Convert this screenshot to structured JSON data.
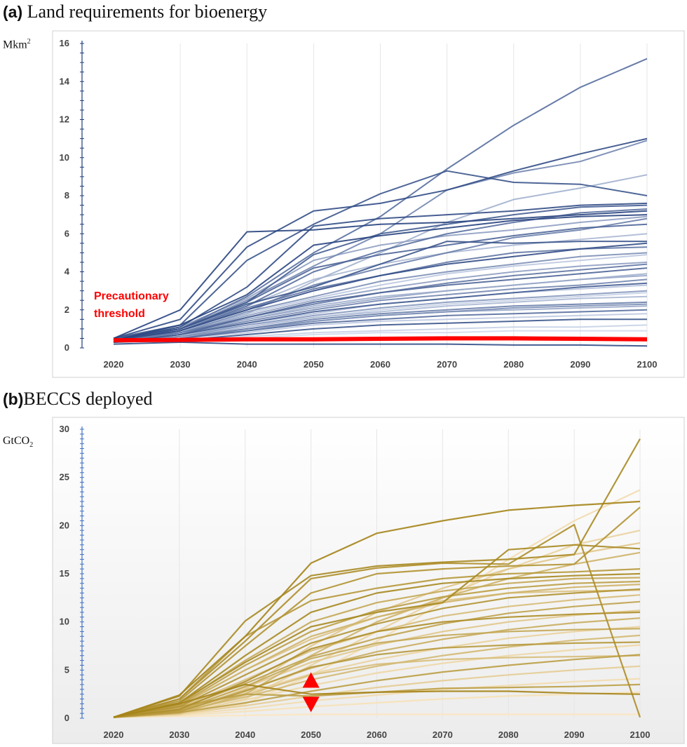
{
  "panels": [
    {
      "letter": "(a)",
      "title": "Land requirements for bioenergy",
      "unit": "Mkm",
      "unit_sup": "2"
    },
    {
      "letter": "(b)",
      "title": "BECCS deployed",
      "unit": "GtCO",
      "unit_sub": "2"
    }
  ],
  "chart_data": [
    {
      "type": "line",
      "title": "Land requirements for bioenergy",
      "ylabel": "Mkm2",
      "x": [
        2020,
        2030,
        2040,
        2050,
        2060,
        2070,
        2080,
        2090,
        2100
      ],
      "xticks": [
        "2020",
        "2030",
        "2040",
        "2050",
        "2060",
        "2070",
        "2080",
        "2090",
        "2100"
      ],
      "yticks": [
        "0",
        "2",
        "4",
        "6",
        "8",
        "10",
        "12",
        "14",
        "16"
      ],
      "ylim": [
        0,
        16
      ],
      "grid": "vertical",
      "colors": {
        "dark": "#1f3c7a",
        "light": "#d9e1f2",
        "threshold": "#ff0000"
      },
      "threshold": {
        "label_line1": "Precautionary",
        "label_line2": "threshold",
        "values": [
          0.4,
          0.42,
          0.45,
          0.45,
          0.48,
          0.5,
          0.5,
          0.48,
          0.45
        ]
      },
      "series": [
        {
          "values": [
            0.5,
            2.0,
            6.1,
            6.2,
            6.5,
            6.6,
            6.8,
            7.0,
            7.2
          ],
          "shade": 0.95
        },
        {
          "values": [
            0.5,
            1.5,
            5.3,
            7.2,
            7.6,
            8.3,
            9.3,
            10.2,
            11.0
          ],
          "shade": 0.9
        },
        {
          "values": [
            0.5,
            1.2,
            4.6,
            6.5,
            8.1,
            9.3,
            8.7,
            8.6,
            8.0
          ],
          "shade": 0.85
        },
        {
          "values": [
            0.5,
            1.0,
            2.7,
            5.0,
            6.9,
            9.4,
            11.7,
            13.7,
            15.2
          ],
          "shade": 0.7
        },
        {
          "values": [
            0.4,
            1.0,
            2.5,
            4.3,
            6.0,
            8.3,
            9.2,
            9.8,
            10.9
          ],
          "shade": 0.55
        },
        {
          "values": [
            0.3,
            0.8,
            1.8,
            3.5,
            5.0,
            6.6,
            7.8,
            8.4,
            9.1
          ],
          "shade": 0.3
        },
        {
          "values": [
            0.4,
            1.1,
            3.2,
            6.4,
            6.8,
            7.0,
            7.2,
            7.5,
            7.6
          ],
          "shade": 0.9
        },
        {
          "values": [
            0.4,
            1.0,
            2.4,
            4.9,
            6.0,
            6.5,
            7.0,
            7.4,
            7.5
          ],
          "shade": 0.8
        },
        {
          "values": [
            0.4,
            0.9,
            2.2,
            4.0,
            5.1,
            6.0,
            6.6,
            7.1,
            7.3
          ],
          "shade": 0.7
        },
        {
          "values": [
            0.3,
            0.9,
            2.0,
            3.3,
            4.2,
            5.0,
            5.8,
            6.2,
            6.8
          ],
          "shade": 0.6
        },
        {
          "values": [
            0.4,
            1.0,
            2.3,
            3.2,
            4.4,
            5.6,
            5.5,
            5.6,
            5.6
          ],
          "shade": 0.85
        },
        {
          "values": [
            0.3,
            0.9,
            2.1,
            3.1,
            3.8,
            4.5,
            5.0,
            5.2,
            5.3
          ],
          "shade": 0.65
        },
        {
          "values": [
            0.3,
            0.8,
            1.9,
            2.7,
            3.5,
            4.0,
            4.4,
            4.8,
            5.0
          ],
          "shade": 0.5
        },
        {
          "values": [
            0.3,
            0.8,
            1.7,
            2.5,
            3.1,
            3.6,
            4.0,
            4.3,
            4.5
          ],
          "shade": 0.4
        },
        {
          "values": [
            0.3,
            0.7,
            1.6,
            2.4,
            2.9,
            3.3,
            3.6,
            3.9,
            4.2
          ],
          "shade": 0.75
        },
        {
          "values": [
            0.3,
            0.7,
            1.5,
            2.2,
            2.7,
            3.0,
            3.3,
            3.6,
            3.9
          ],
          "shade": 0.3
        },
        {
          "values": [
            0.3,
            0.7,
            1.4,
            2.0,
            2.5,
            2.8,
            3.1,
            3.3,
            3.6
          ],
          "shade": 0.55
        },
        {
          "values": [
            0.3,
            0.6,
            1.3,
            1.8,
            2.3,
            2.6,
            2.9,
            3.1,
            3.3
          ],
          "shade": 0.2
        },
        {
          "values": [
            0.3,
            0.6,
            1.2,
            1.7,
            2.1,
            2.4,
            2.6,
            2.8,
            3.0
          ],
          "shade": 0.45
        },
        {
          "values": [
            0.3,
            0.6,
            1.1,
            1.6,
            1.9,
            2.2,
            2.4,
            2.6,
            2.7
          ],
          "shade": 0.25
        },
        {
          "values": [
            0.3,
            0.5,
            1.0,
            1.5,
            1.8,
            2.0,
            2.2,
            2.3,
            2.4
          ],
          "shade": 0.6
        },
        {
          "values": [
            0.3,
            0.5,
            0.9,
            1.4,
            1.7,
            1.9,
            2.0,
            2.1,
            2.2
          ],
          "shade": 0.35
        },
        {
          "values": [
            0.3,
            0.5,
            0.9,
            1.3,
            1.5,
            1.7,
            1.8,
            1.9,
            2.0
          ],
          "shade": 0.7
        },
        {
          "values": [
            0.3,
            0.5,
            0.8,
            1.2,
            1.4,
            1.5,
            1.6,
            1.7,
            1.8
          ],
          "shade": 0.15
        },
        {
          "values": [
            0.3,
            0.4,
            0.7,
            1.0,
            1.2,
            1.3,
            1.4,
            1.5,
            1.5
          ],
          "shade": 0.85
        },
        {
          "values": [
            0.3,
            0.4,
            0.6,
            0.8,
            0.9,
            1.0,
            1.1,
            1.1,
            1.2
          ],
          "shade": 0.1
        },
        {
          "values": [
            0.3,
            0.4,
            0.5,
            0.7,
            0.8,
            0.8,
            0.9,
            0.9,
            0.9
          ],
          "shade": 0.05
        },
        {
          "values": [
            0.2,
            0.3,
            0.2,
            0.2,
            0.2,
            0.2,
            0.15,
            0.15,
            0.1
          ],
          "shade": 0.9
        },
        {
          "values": [
            0.4,
            1.2,
            2.8,
            5.4,
            5.9,
            6.3,
            6.7,
            6.9,
            7.0
          ],
          "shade": 0.95
        },
        {
          "values": [
            0.4,
            1.1,
            2.6,
            4.6,
            5.4,
            5.9,
            6.2,
            6.6,
            6.9
          ],
          "shade": 0.4
        },
        {
          "values": [
            0.4,
            1.0,
            2.4,
            4.2,
            4.9,
            5.4,
            5.9,
            6.3,
            6.5
          ],
          "shade": 0.75
        },
        {
          "values": [
            0.4,
            1.0,
            2.2,
            3.6,
            4.4,
            5.0,
            5.4,
            5.7,
            6.0
          ],
          "shade": 0.25
        },
        {
          "values": [
            0.4,
            0.9,
            2.0,
            3.0,
            3.8,
            4.4,
            4.8,
            5.2,
            5.5
          ],
          "shade": 0.9
        },
        {
          "values": [
            0.4,
            0.9,
            1.8,
            2.6,
            3.3,
            3.9,
            4.3,
            4.6,
            4.9
          ],
          "shade": 0.15
        },
        {
          "values": [
            0.4,
            0.8,
            1.6,
            2.3,
            2.9,
            3.4,
            3.8,
            4.1,
            4.4
          ],
          "shade": 0.65
        },
        {
          "values": [
            0.3,
            0.8,
            1.5,
            2.1,
            2.6,
            3.0,
            3.3,
            3.6,
            3.8
          ],
          "shade": 0.35
        },
        {
          "values": [
            0.3,
            0.7,
            1.3,
            1.9,
            2.3,
            2.6,
            2.9,
            3.2,
            3.4
          ],
          "shade": 0.8
        },
        {
          "values": [
            0.3,
            0.6,
            1.2,
            1.6,
            2.0,
            2.3,
            2.5,
            2.7,
            2.9
          ],
          "shade": 0.1
        },
        {
          "values": [
            0.3,
            0.6,
            1.0,
            1.4,
            1.7,
            1.9,
            2.1,
            2.2,
            2.3
          ],
          "shade": 0.5
        }
      ]
    },
    {
      "type": "line",
      "title": "BECCS deployed",
      "ylabel": "GtCO2",
      "x": [
        2020,
        2030,
        2040,
        2050,
        2060,
        2070,
        2080,
        2090,
        2100
      ],
      "xticks": [
        "2020",
        "2030",
        "2040",
        "2050",
        "2060",
        "2070",
        "2080",
        "2090",
        "2100"
      ],
      "yticks": [
        "0",
        "5",
        "10",
        "15",
        "20",
        "25",
        "30"
      ],
      "ylim": [
        0,
        30
      ],
      "grid": "vertical",
      "colors": {
        "dark": "#a07f10",
        "light": "#fbe6c0",
        "marker": "#ff0000"
      },
      "markers": {
        "x": 2050,
        "up": 3.9,
        "down": 1.5
      },
      "series": [
        {
          "values": [
            0.1,
            2.4,
            8.5,
            16.1,
            19.2,
            20.5,
            21.6,
            22.1,
            22.5
          ],
          "shade": 0.95
        },
        {
          "values": [
            0.1,
            2.3,
            10.1,
            14.8,
            15.8,
            16.2,
            16.5,
            17.0,
            29.0
          ],
          "shade": 0.9
        },
        {
          "values": [
            0.1,
            2.0,
            8.0,
            14.5,
            15.6,
            16.1,
            16.0,
            20.1,
            0.1
          ],
          "shade": 0.85
        },
        {
          "values": [
            0.1,
            1.8,
            7.5,
            13.0,
            15.0,
            15.5,
            15.8,
            16.0,
            21.9
          ],
          "shade": 0.8
        },
        {
          "values": [
            0.1,
            2.0,
            8.5,
            12.2,
            13.5,
            14.5,
            15.0,
            15.2,
            15.5
          ],
          "shade": 0.75
        },
        {
          "values": [
            0.1,
            1.6,
            6.5,
            11.0,
            13.0,
            14.0,
            14.5,
            14.8,
            15.0
          ],
          "shade": 0.9
        },
        {
          "values": [
            0.1,
            1.5,
            6.0,
            10.0,
            12.0,
            13.2,
            14.0,
            14.5,
            14.6
          ],
          "shade": 0.6
        },
        {
          "values": [
            0.1,
            1.4,
            5.5,
            9.0,
            11.2,
            12.6,
            13.5,
            14.0,
            14.2
          ],
          "shade": 0.7
        },
        {
          "values": [
            0.1,
            1.3,
            5.0,
            8.5,
            10.5,
            12.0,
            13.0,
            13.6,
            13.9
          ],
          "shade": 0.5
        },
        {
          "values": [
            0.1,
            1.2,
            4.5,
            7.8,
            9.8,
            11.4,
            12.5,
            13.0,
            13.4
          ],
          "shade": 0.8
        },
        {
          "values": [
            0.1,
            1.1,
            4.0,
            7.0,
            9.0,
            10.6,
            11.6,
            12.3,
            12.8
          ],
          "shade": 0.4
        },
        {
          "values": [
            0.1,
            1.0,
            3.6,
            6.4,
            8.3,
            9.8,
            10.9,
            11.6,
            12.1
          ],
          "shade": 0.65
        },
        {
          "values": [
            0.1,
            0.9,
            3.2,
            5.8,
            7.6,
            9.0,
            10.0,
            10.7,
            11.2
          ],
          "shade": 0.3
        },
        {
          "values": [
            0.1,
            0.8,
            2.9,
            5.2,
            6.9,
            8.2,
            9.2,
            9.9,
            10.4
          ],
          "shade": 0.55
        },
        {
          "values": [
            0.1,
            0.8,
            2.6,
            4.6,
            6.1,
            7.3,
            8.3,
            9.0,
            9.5
          ],
          "shade": 0.2
        },
        {
          "values": [
            0.1,
            0.7,
            2.2,
            4.0,
            5.4,
            6.5,
            7.4,
            8.1,
            8.6
          ],
          "shade": 0.45
        },
        {
          "values": [
            0.1,
            0.6,
            1.9,
            3.4,
            4.7,
            5.7,
            6.5,
            7.1,
            7.6
          ],
          "shade": 0.15
        },
        {
          "values": [
            0.1,
            0.6,
            1.6,
            2.8,
            3.9,
            4.8,
            5.5,
            6.1,
            6.6
          ],
          "shade": 0.7
        },
        {
          "values": [
            0.1,
            0.5,
            1.3,
            2.3,
            3.2,
            3.9,
            4.5,
            5.0,
            5.4
          ],
          "shade": 0.25
        },
        {
          "values": [
            0.1,
            0.4,
            1.0,
            1.8,
            2.4,
            3.0,
            3.4,
            3.8,
            4.1
          ],
          "shade": 0.1
        },
        {
          "values": [
            0.1,
            0.3,
            0.7,
            1.2,
            1.6,
            2.0,
            2.3,
            2.5,
            2.7
          ],
          "shade": 0.05
        },
        {
          "values": [
            0.1,
            0.2,
            0.3,
            0.4,
            0.4,
            0.4,
            0.4,
            0.4,
            0.4
          ],
          "shade": 0.0
        },
        {
          "values": [
            0.1,
            1.5,
            3.5,
            2.5,
            2.7,
            2.8,
            2.8,
            2.6,
            2.5
          ],
          "shade": 0.95
        },
        {
          "values": [
            0.1,
            1.2,
            2.5,
            2.3,
            2.7,
            3.1,
            3.2,
            3.3,
            3.5
          ],
          "shade": 0.7
        },
        {
          "values": [
            0.1,
            0.3,
            1.5,
            4.5,
            8.0,
            12.0,
            16.5,
            20.5,
            23.7
          ],
          "shade": 0.1
        },
        {
          "values": [
            0.1,
            0.4,
            2.0,
            5.5,
            9.0,
            12.5,
            15.5,
            18.0,
            19.5
          ],
          "shade": 0.2
        },
        {
          "values": [
            0.1,
            0.6,
            3.0,
            7.5,
            11.0,
            13.5,
            15.5,
            17.0,
            18.2
          ],
          "shade": 0.3
        },
        {
          "values": [
            0.1,
            0.5,
            2.5,
            6.5,
            10.0,
            12.5,
            14.5,
            16.0,
            17.2
          ],
          "shade": 0.5
        },
        {
          "values": [
            0.1,
            0.9,
            3.8,
            7.2,
            9.0,
            10.0,
            10.5,
            10.8,
            11.0
          ],
          "shade": 0.85
        },
        {
          "values": [
            0.1,
            0.8,
            3.3,
            6.2,
            7.8,
            8.6,
            9.0,
            9.2,
            9.3
          ],
          "shade": 0.6
        },
        {
          "values": [
            0.1,
            0.7,
            2.8,
            5.3,
            6.6,
            7.3,
            7.6,
            7.8,
            7.9
          ],
          "shade": 0.75
        },
        {
          "values": [
            0.1,
            0.6,
            2.4,
            4.5,
            5.6,
            6.1,
            6.3,
            6.4,
            6.5
          ],
          "shade": 0.4
        },
        {
          "values": [
            0.1,
            1.6,
            5.8,
            9.5,
            11.0,
            12.0,
            17.5,
            18.0,
            17.6
          ],
          "shade": 0.9
        },
        {
          "values": [
            0.1,
            1.4,
            5.0,
            8.2,
            10.5,
            12.2,
            13.0,
            13.2,
            13.3
          ],
          "shade": 0.35
        }
      ]
    }
  ]
}
